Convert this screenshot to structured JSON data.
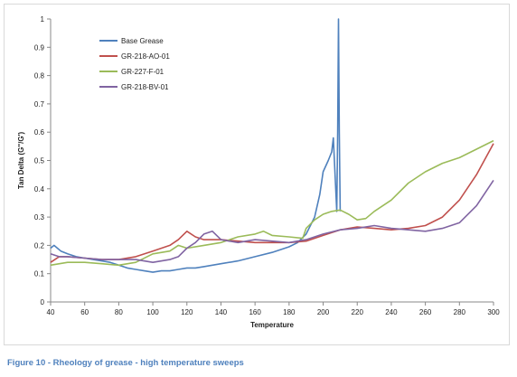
{
  "caption": "Figure 10 - Rheology of grease - high temperature sweeps",
  "chart_data": {
    "type": "line",
    "title": "",
    "xlabel": "Temperature",
    "ylabel": "Tan Delta (G''/G')",
    "xlim": [
      40,
      300
    ],
    "ylim": [
      0,
      1
    ],
    "x_ticks": [
      "40",
      "60",
      "80",
      "100",
      "120",
      "140",
      "160",
      "180",
      "200",
      "220",
      "240",
      "260",
      "280",
      "300"
    ],
    "y_ticks": [
      "0",
      "0.1",
      "0.2",
      "0.3",
      "0.4",
      "0.5",
      "0.6",
      "0.7",
      "0.8",
      "0.9",
      "1"
    ],
    "grid": false,
    "legend_position": "top-left",
    "series": [
      {
        "name": "Base Grease",
        "color": "#4f81bd",
        "points": [
          [
            40,
            0.19
          ],
          [
            42,
            0.2
          ],
          [
            44,
            0.19
          ],
          [
            46,
            0.18
          ],
          [
            50,
            0.17
          ],
          [
            55,
            0.16
          ],
          [
            60,
            0.155
          ],
          [
            65,
            0.15
          ],
          [
            70,
            0.145
          ],
          [
            75,
            0.14
          ],
          [
            80,
            0.13
          ],
          [
            85,
            0.12
          ],
          [
            90,
            0.115
          ],
          [
            95,
            0.11
          ],
          [
            100,
            0.105
          ],
          [
            105,
            0.11
          ],
          [
            110,
            0.11
          ],
          [
            115,
            0.115
          ],
          [
            120,
            0.12
          ],
          [
            125,
            0.12
          ],
          [
            130,
            0.125
          ],
          [
            140,
            0.135
          ],
          [
            150,
            0.145
          ],
          [
            160,
            0.16
          ],
          [
            170,
            0.175
          ],
          [
            180,
            0.195
          ],
          [
            185,
            0.21
          ],
          [
            190,
            0.24
          ],
          [
            195,
            0.3
          ],
          [
            198,
            0.38
          ],
          [
            200,
            0.46
          ],
          [
            203,
            0.5
          ],
          [
            205,
            0.53
          ],
          [
            206,
            0.58
          ],
          [
            207,
            0.45
          ],
          [
            208,
            0.32
          ],
          [
            208.5,
            0.6
          ],
          [
            209,
            1.0
          ],
          [
            209.5,
            0.6
          ],
          [
            210,
            0.32
          ]
        ]
      },
      {
        "name": "GR-218-AO-01",
        "color": "#c0504d",
        "points": [
          [
            40,
            0.14
          ],
          [
            45,
            0.16
          ],
          [
            50,
            0.16
          ],
          [
            60,
            0.155
          ],
          [
            70,
            0.15
          ],
          [
            80,
            0.15
          ],
          [
            90,
            0.16
          ],
          [
            100,
            0.18
          ],
          [
            110,
            0.2
          ],
          [
            115,
            0.22
          ],
          [
            120,
            0.25
          ],
          [
            125,
            0.23
          ],
          [
            130,
            0.22
          ],
          [
            140,
            0.22
          ],
          [
            150,
            0.215
          ],
          [
            160,
            0.21
          ],
          [
            170,
            0.21
          ],
          [
            180,
            0.21
          ],
          [
            190,
            0.215
          ],
          [
            200,
            0.235
          ],
          [
            210,
            0.255
          ],
          [
            220,
            0.265
          ],
          [
            230,
            0.26
          ],
          [
            240,
            0.255
          ],
          [
            250,
            0.26
          ],
          [
            260,
            0.27
          ],
          [
            270,
            0.3
          ],
          [
            280,
            0.36
          ],
          [
            290,
            0.45
          ],
          [
            300,
            0.56
          ]
        ]
      },
      {
        "name": "GR-227-F-01",
        "color": "#9bbb59",
        "points": [
          [
            40,
            0.13
          ],
          [
            50,
            0.14
          ],
          [
            60,
            0.14
          ],
          [
            70,
            0.135
          ],
          [
            80,
            0.13
          ],
          [
            90,
            0.14
          ],
          [
            100,
            0.17
          ],
          [
            110,
            0.18
          ],
          [
            115,
            0.2
          ],
          [
            120,
            0.19
          ],
          [
            130,
            0.2
          ],
          [
            140,
            0.21
          ],
          [
            150,
            0.23
          ],
          [
            160,
            0.24
          ],
          [
            165,
            0.25
          ],
          [
            170,
            0.235
          ],
          [
            180,
            0.23
          ],
          [
            188,
            0.225
          ],
          [
            190,
            0.26
          ],
          [
            195,
            0.29
          ],
          [
            200,
            0.31
          ],
          [
            205,
            0.32
          ],
          [
            210,
            0.325
          ],
          [
            215,
            0.31
          ],
          [
            220,
            0.29
          ],
          [
            225,
            0.295
          ],
          [
            230,
            0.32
          ],
          [
            240,
            0.36
          ],
          [
            250,
            0.42
          ],
          [
            260,
            0.46
          ],
          [
            270,
            0.49
          ],
          [
            280,
            0.51
          ],
          [
            290,
            0.54
          ],
          [
            300,
            0.57
          ]
        ]
      },
      {
        "name": "GR-218-BV-01",
        "color": "#8064a2",
        "points": [
          [
            40,
            0.17
          ],
          [
            45,
            0.16
          ],
          [
            50,
            0.16
          ],
          [
            60,
            0.155
          ],
          [
            70,
            0.15
          ],
          [
            80,
            0.15
          ],
          [
            90,
            0.15
          ],
          [
            100,
            0.14
          ],
          [
            110,
            0.15
          ],
          [
            115,
            0.16
          ],
          [
            120,
            0.19
          ],
          [
            125,
            0.21
          ],
          [
            130,
            0.24
          ],
          [
            135,
            0.25
          ],
          [
            140,
            0.22
          ],
          [
            150,
            0.21
          ],
          [
            160,
            0.22
          ],
          [
            170,
            0.215
          ],
          [
            180,
            0.21
          ],
          [
            190,
            0.22
          ],
          [
            200,
            0.24
          ],
          [
            210,
            0.255
          ],
          [
            220,
            0.26
          ],
          [
            230,
            0.27
          ],
          [
            240,
            0.26
          ],
          [
            250,
            0.255
          ],
          [
            260,
            0.25
          ],
          [
            270,
            0.26
          ],
          [
            280,
            0.28
          ],
          [
            290,
            0.34
          ],
          [
            300,
            0.43
          ]
        ]
      }
    ]
  }
}
